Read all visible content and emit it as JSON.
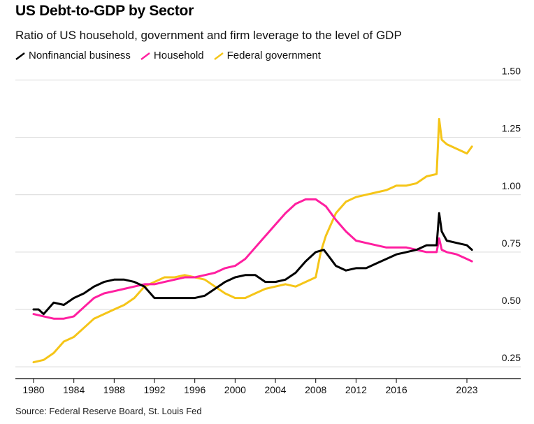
{
  "title": "US Debt-to-GDP by Sector",
  "subtitle": "Ratio of US household, government and firm leverage to the level of GDP",
  "source": "Source: Federal Reserve Board, St. Louis Fed",
  "colors": {
    "nonfinancial": "#000000",
    "household": "#ff1fa0",
    "federal": "#f5c518",
    "grid": "#d9d9d9"
  },
  "chart_data": {
    "type": "line",
    "title": "US Debt-to-GDP by Sector",
    "subtitle": "Ratio of US household, government and firm leverage to the level of GDP",
    "xlim": [
      1979.5,
      2025.5
    ],
    "ylim": [
      0.22,
      1.52
    ],
    "yticks": [
      "0.25",
      "0.50",
      "0.75",
      "1.00",
      "1.25",
      "1.50"
    ],
    "ytick_values": [
      0.25,
      0.5,
      0.75,
      1.0,
      1.25,
      1.5
    ],
    "xticks": [
      "1980",
      "1984",
      "1988",
      "1992",
      "1996",
      "2000",
      "2004",
      "2008",
      "2012",
      "2016",
      "2023"
    ],
    "xtick_values": [
      1980,
      1984,
      1988,
      1992,
      1996,
      2000,
      2004,
      2008,
      2012,
      2016,
      2023
    ],
    "grid": true,
    "legend_position": "top-left",
    "series": [
      {
        "name": "Nonfinancial business",
        "color": "#000000",
        "x": [
          1980,
          1980.5,
          1981,
          1982,
          1983,
          1984,
          1985,
          1986,
          1987,
          1988,
          1989,
          1990,
          1991,
          1992,
          1993,
          1994,
          1995,
          1996,
          1997,
          1998,
          1999,
          2000,
          2001,
          2002,
          2003,
          2004,
          2005,
          2006,
          2007,
          2008,
          2008.8,
          2009.5,
          2010,
          2011,
          2012,
          2013,
          2014,
          2015,
          2016,
          2017,
          2018,
          2019,
          2020.0,
          2020.25,
          2020.5,
          2021,
          2022,
          2023,
          2023.5
        ],
        "y": [
          0.5,
          0.5,
          0.48,
          0.53,
          0.52,
          0.55,
          0.57,
          0.6,
          0.62,
          0.63,
          0.63,
          0.62,
          0.6,
          0.55,
          0.55,
          0.55,
          0.55,
          0.55,
          0.56,
          0.59,
          0.62,
          0.64,
          0.65,
          0.65,
          0.62,
          0.62,
          0.63,
          0.66,
          0.71,
          0.75,
          0.76,
          0.72,
          0.69,
          0.67,
          0.68,
          0.68,
          0.7,
          0.72,
          0.74,
          0.75,
          0.76,
          0.78,
          0.78,
          0.92,
          0.84,
          0.8,
          0.79,
          0.78,
          0.76
        ]
      },
      {
        "name": "Household",
        "color": "#ff1fa0",
        "x": [
          1980,
          1981,
          1982,
          1983,
          1984,
          1985,
          1986,
          1987,
          1988,
          1989,
          1990,
          1991,
          1992,
          1993,
          1994,
          1995,
          1996,
          1997,
          1998,
          1999,
          2000,
          2001,
          2002,
          2003,
          2004,
          2005,
          2006,
          2007,
          2008,
          2009,
          2010,
          2011,
          2012,
          2013,
          2014,
          2015,
          2016,
          2017,
          2018,
          2019,
          2020.0,
          2020.25,
          2020.5,
          2021,
          2022,
          2023,
          2023.5
        ],
        "y": [
          0.48,
          0.47,
          0.46,
          0.46,
          0.47,
          0.51,
          0.55,
          0.57,
          0.58,
          0.59,
          0.6,
          0.61,
          0.61,
          0.62,
          0.63,
          0.64,
          0.64,
          0.65,
          0.66,
          0.68,
          0.69,
          0.72,
          0.77,
          0.82,
          0.87,
          0.92,
          0.96,
          0.98,
          0.98,
          0.95,
          0.89,
          0.84,
          0.8,
          0.79,
          0.78,
          0.77,
          0.77,
          0.77,
          0.76,
          0.75,
          0.75,
          0.81,
          0.76,
          0.75,
          0.74,
          0.72,
          0.71
        ]
      },
      {
        "name": "Federal government",
        "color": "#f5c518",
        "x": [
          1980,
          1981,
          1982,
          1983,
          1984,
          1985,
          1986,
          1987,
          1988,
          1989,
          1990,
          1991,
          1992,
          1993,
          1994,
          1995,
          1996,
          1997,
          1998,
          1999,
          2000,
          2001,
          2002,
          2003,
          2004,
          2005,
          2006,
          2007,
          2008,
          2008.5,
          2009,
          2010,
          2011,
          2012,
          2013,
          2014,
          2015,
          2016,
          2017,
          2018,
          2019,
          2020.0,
          2020.25,
          2020.5,
          2021,
          2022,
          2023,
          2023.5
        ],
        "y": [
          0.27,
          0.28,
          0.31,
          0.36,
          0.38,
          0.42,
          0.46,
          0.48,
          0.5,
          0.52,
          0.55,
          0.6,
          0.62,
          0.64,
          0.64,
          0.65,
          0.64,
          0.63,
          0.6,
          0.57,
          0.55,
          0.55,
          0.57,
          0.59,
          0.6,
          0.61,
          0.6,
          0.62,
          0.64,
          0.75,
          0.82,
          0.92,
          0.97,
          0.99,
          1.0,
          1.01,
          1.02,
          1.04,
          1.04,
          1.05,
          1.08,
          1.09,
          1.33,
          1.24,
          1.22,
          1.2,
          1.18,
          1.21
        ]
      }
    ]
  }
}
